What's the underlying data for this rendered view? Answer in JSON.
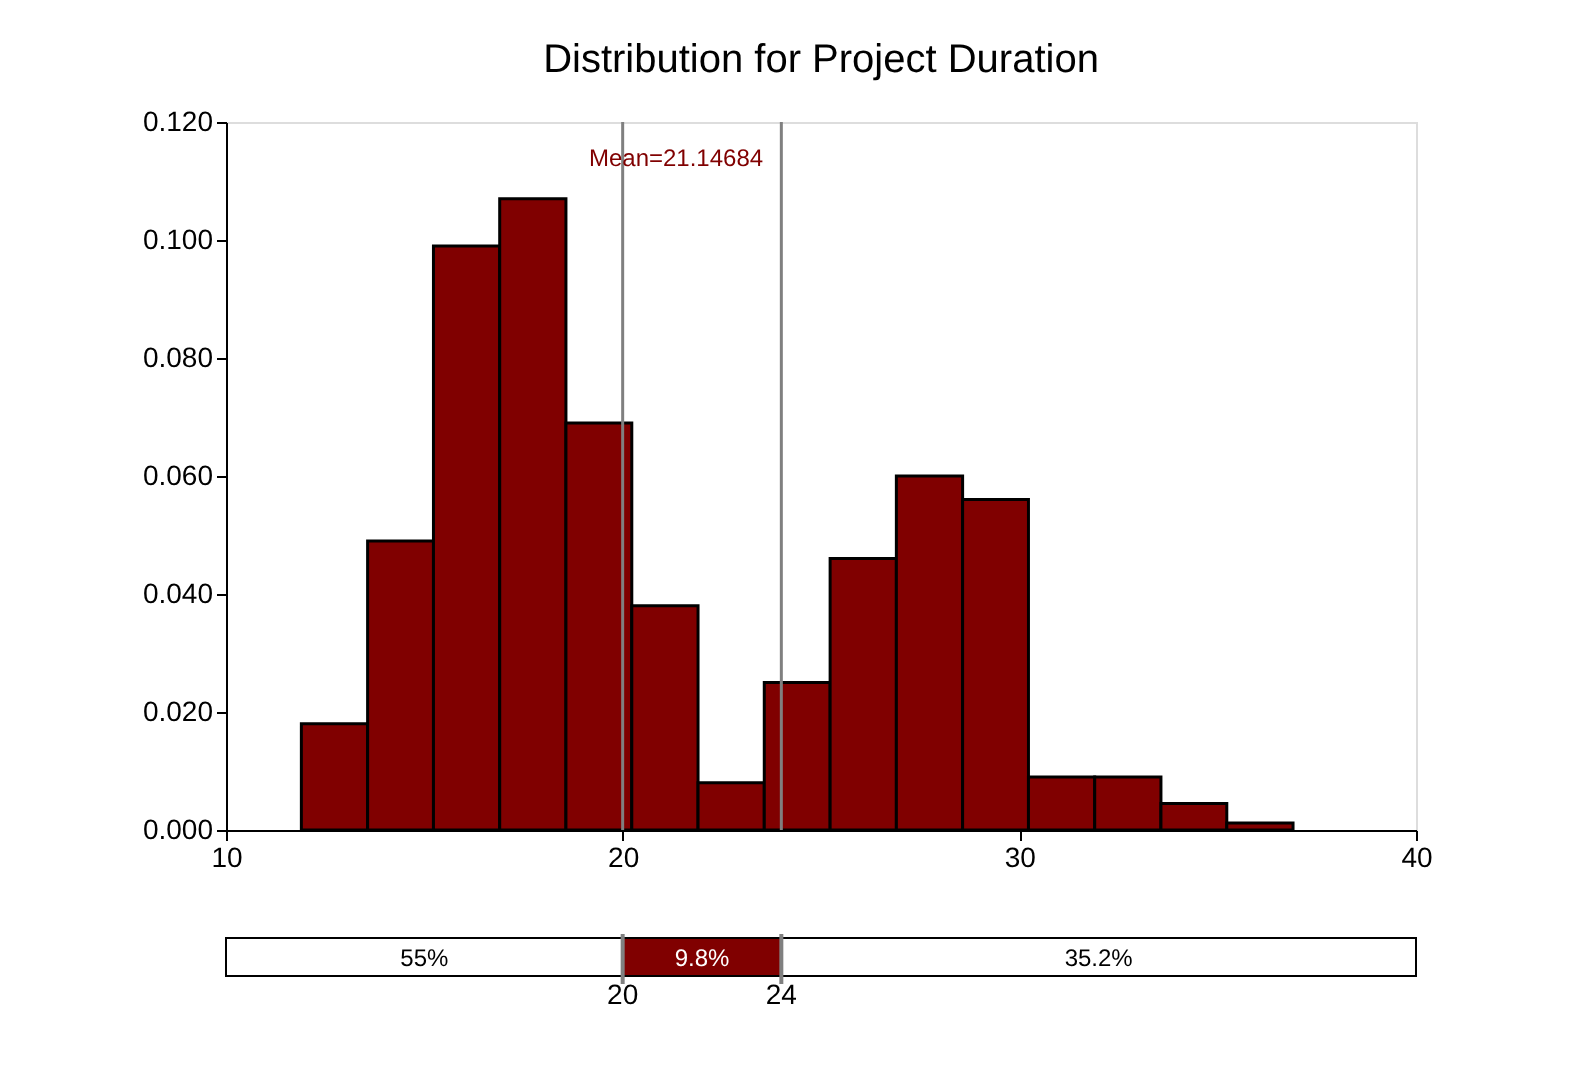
{
  "chart_data": {
    "type": "histogram",
    "title": "Distribution for Project Duration",
    "bins": [
      11.9,
      13.57,
      15.23,
      16.9,
      18.57,
      20.23,
      21.9,
      23.57,
      25.23,
      26.9,
      28.57,
      30.23,
      31.9,
      33.57,
      35.23,
      36.9
    ],
    "values": [
      0.018,
      0.049,
      0.099,
      0.107,
      0.069,
      0.038,
      0.008,
      0.025,
      0.046,
      0.06,
      0.056,
      0.009,
      0.009,
      0.0045,
      0.0012
    ],
    "color": "#800000",
    "xlim": [
      10,
      40
    ],
    "xticks": [
      10,
      20,
      30,
      40
    ],
    "ylim": [
      0,
      0.12
    ],
    "yticks": [
      {
        "value": 0,
        "label": "0.000"
      },
      {
        "value": 0.02,
        "label": "0.020"
      },
      {
        "value": 0.04,
        "label": "0.040"
      },
      {
        "value": 0.06,
        "label": "0.060"
      },
      {
        "value": 0.08,
        "label": "0.080"
      },
      {
        "value": 0.1,
        "label": "0.100"
      },
      {
        "value": 0.12,
        "label": "0.120"
      }
    ],
    "ref_lines": [
      {
        "axis": "x",
        "value": 20,
        "color": "#808080"
      },
      {
        "axis": "x",
        "value": 24,
        "color": "#808080"
      }
    ],
    "annotations": [
      "Mean=21.14684",
      "55%",
      "9.8%",
      "35.2%",
      "20",
      "24"
    ],
    "grid": false
  }
}
